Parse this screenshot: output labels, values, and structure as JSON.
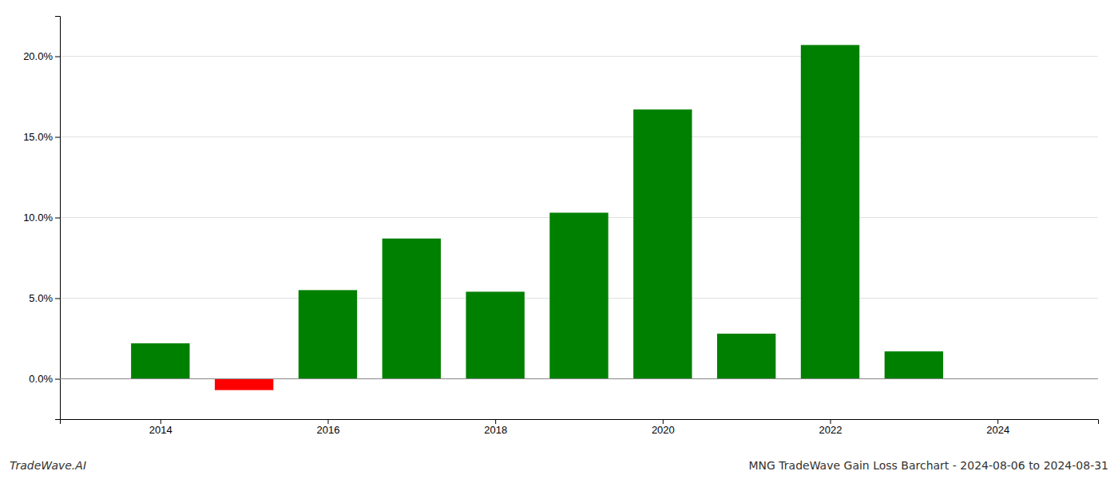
{
  "chart_data": {
    "type": "bar",
    "title": "MNG TradeWave Gain Loss Barchart - 2024-08-06 to 2024-08-31",
    "annotations": [
      "TradeWave.AI"
    ],
    "x": [
      2014,
      2015,
      2016,
      2017,
      2018,
      2019,
      2020,
      2021,
      2022,
      2023
    ],
    "values": [
      0.022,
      -0.007,
      0.055,
      0.087,
      0.054,
      0.103,
      0.167,
      0.028,
      0.207,
      0.017
    ],
    "colors": [
      "#008000",
      "#ff0000",
      "#008000",
      "#008000",
      "#008000",
      "#008000",
      "#008000",
      "#008000",
      "#008000",
      "#008000"
    ],
    "xlim": [
      2012.8,
      2025.2
    ],
    "xticks": [
      2014,
      2016,
      2018,
      2020,
      2022,
      2024
    ],
    "ylim": [
      -0.025,
      0.225
    ],
    "yticks": [
      {
        "value": 0.0,
        "label": "0.0%"
      },
      {
        "value": 0.05,
        "label": "5.0%"
      },
      {
        "value": 0.1,
        "label": "10.0%"
      },
      {
        "value": 0.15,
        "label": "15.0%"
      },
      {
        "value": 0.2,
        "label": "20.0%"
      }
    ],
    "grid": true
  }
}
